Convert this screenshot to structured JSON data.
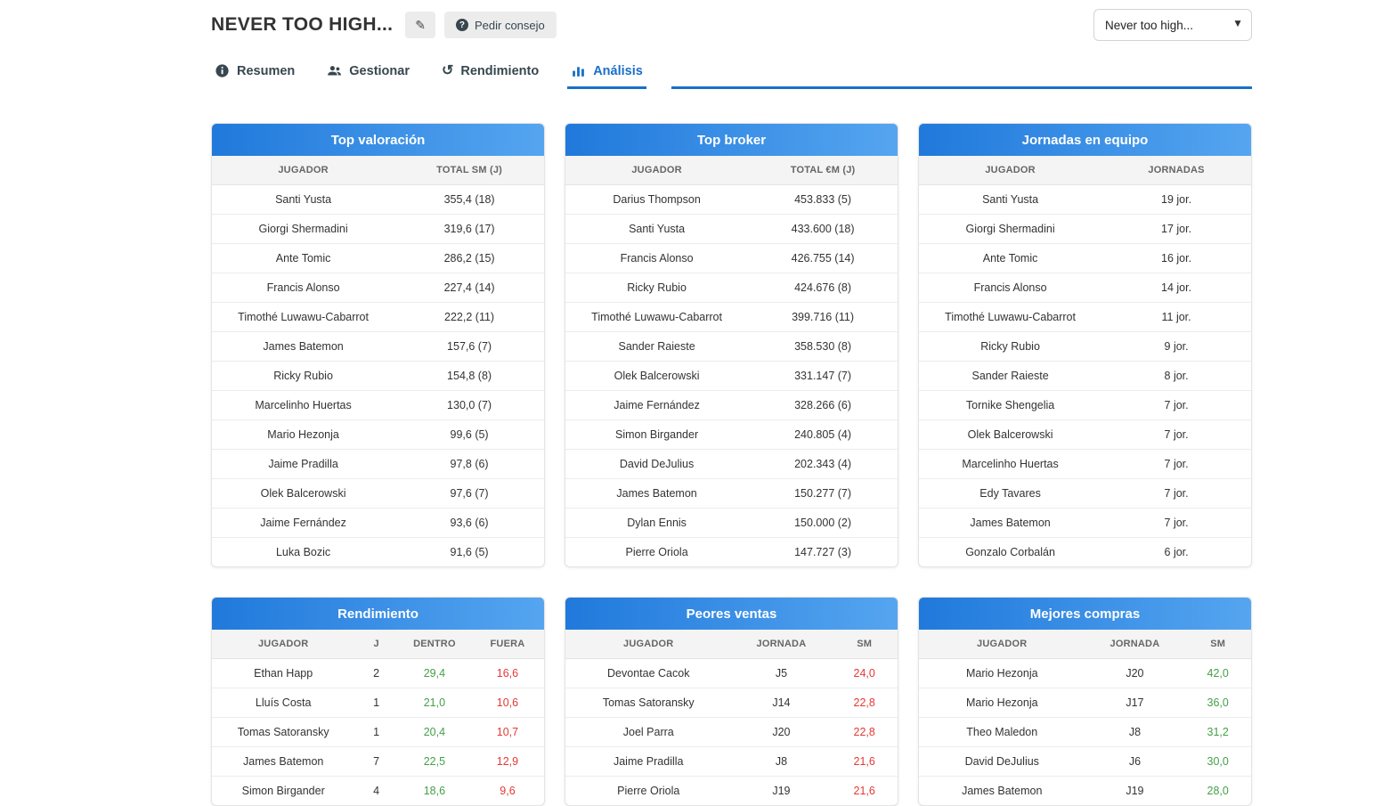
{
  "header": {
    "title": "NEVER TOO HIGH...",
    "edit_icon": "pencil-icon",
    "advice_button": "Pedir consejo",
    "league_select": "Never too high..."
  },
  "colors": {
    "accent_blue": "#1a6fc9",
    "card_gradient_start": "#2079db",
    "card_gradient_end": "#55a5f0",
    "positive": "#43a047",
    "negative": "#e53935"
  },
  "tabs": [
    {
      "label": "Resumen",
      "icon": "summary-icon",
      "active": false
    },
    {
      "label": "Gestionar",
      "icon": "users-icon",
      "active": false
    },
    {
      "label": "Rendimiento",
      "icon": "history-icon",
      "active": false
    },
    {
      "label": "Análisis",
      "icon": "chart-icon",
      "active": true
    }
  ],
  "cards": [
    {
      "title": "Top valoración",
      "columns": [
        "JUGADOR",
        "TOTAL SM (J)"
      ],
      "column_colors": [
        null,
        null
      ],
      "rows": [
        [
          "Santi Yusta",
          "355,4 (18)"
        ],
        [
          "Giorgi Shermadini",
          "319,6 (17)"
        ],
        [
          "Ante Tomic",
          "286,2 (15)"
        ],
        [
          "Francis Alonso",
          "227,4 (14)"
        ],
        [
          "Timothé Luwawu-Cabarrot",
          "222,2 (11)"
        ],
        [
          "James Batemon",
          "157,6 (7)"
        ],
        [
          "Ricky Rubio",
          "154,8 (8)"
        ],
        [
          "Marcelinho Huertas",
          "130,0 (7)"
        ],
        [
          "Mario Hezonja",
          "99,6 (5)"
        ],
        [
          "Jaime Pradilla",
          "97,8 (6)"
        ],
        [
          "Olek Balcerowski",
          "97,6 (7)"
        ],
        [
          "Jaime Fernández",
          "93,6 (6)"
        ],
        [
          "Luka Bozic",
          "91,6 (5)"
        ]
      ]
    },
    {
      "title": "Top broker",
      "columns": [
        "JUGADOR",
        "TOTAL €M (J)"
      ],
      "column_colors": [
        null,
        null
      ],
      "rows": [
        [
          "Darius Thompson",
          "453.833 (5)"
        ],
        [
          "Santi Yusta",
          "433.600 (18)"
        ],
        [
          "Francis Alonso",
          "426.755 (14)"
        ],
        [
          "Ricky Rubio",
          "424.676 (8)"
        ],
        [
          "Timothé Luwawu-Cabarrot",
          "399.716 (11)"
        ],
        [
          "Sander Raieste",
          "358.530 (8)"
        ],
        [
          "Olek Balcerowski",
          "331.147 (7)"
        ],
        [
          "Jaime Fernández",
          "328.266 (6)"
        ],
        [
          "Simon Birgander",
          "240.805 (4)"
        ],
        [
          "David DeJulius",
          "202.343 (4)"
        ],
        [
          "James Batemon",
          "150.277 (7)"
        ],
        [
          "Dylan Ennis",
          "150.000 (2)"
        ],
        [
          "Pierre Oriola",
          "147.727 (3)"
        ]
      ]
    },
    {
      "title": "Jornadas en equipo",
      "columns": [
        "JUGADOR",
        "JORNADAS"
      ],
      "column_colors": [
        null,
        null
      ],
      "rows": [
        [
          "Santi Yusta",
          "19 jor."
        ],
        [
          "Giorgi Shermadini",
          "17 jor."
        ],
        [
          "Ante Tomic",
          "16 jor."
        ],
        [
          "Francis Alonso",
          "14 jor."
        ],
        [
          "Timothé Luwawu-Cabarrot",
          "11 jor."
        ],
        [
          "Ricky Rubio",
          "9 jor."
        ],
        [
          "Sander Raieste",
          "8 jor."
        ],
        [
          "Tornike Shengelia",
          "7 jor."
        ],
        [
          "Olek Balcerowski",
          "7 jor."
        ],
        [
          "Marcelinho Huertas",
          "7 jor."
        ],
        [
          "Edy Tavares",
          "7 jor."
        ],
        [
          "James Batemon",
          "7 jor."
        ],
        [
          "Gonzalo Corbalán",
          "6 jor."
        ]
      ]
    },
    {
      "title": "Rendimiento",
      "columns": [
        "JUGADOR",
        "J",
        "DENTRO",
        "FUERA"
      ],
      "column_colors": [
        null,
        null,
        "green",
        "red"
      ],
      "rows": [
        [
          "Ethan Happ",
          "2",
          "29,4",
          "16,6"
        ],
        [
          "Lluís Costa",
          "1",
          "21,0",
          "10,6"
        ],
        [
          "Tomas Satoransky",
          "1",
          "20,4",
          "10,7"
        ],
        [
          "James Batemon",
          "7",
          "22,5",
          "12,9"
        ],
        [
          "Simon Birgander",
          "4",
          "18,6",
          "9,6"
        ]
      ]
    },
    {
      "title": "Peores ventas",
      "columns": [
        "JUGADOR",
        "JORNADA",
        "SM"
      ],
      "column_colors": [
        null,
        null,
        "red"
      ],
      "rows": [
        [
          "Devontae Cacok",
          "J5",
          "24,0"
        ],
        [
          "Tomas Satoransky",
          "J14",
          "22,8"
        ],
        [
          "Joel Parra",
          "J20",
          "22,8"
        ],
        [
          "Jaime Pradilla",
          "J8",
          "21,6"
        ],
        [
          "Pierre Oriola",
          "J19",
          "21,6"
        ]
      ]
    },
    {
      "title": "Mejores compras",
      "columns": [
        "JUGADOR",
        "JORNADA",
        "SM"
      ],
      "column_colors": [
        null,
        null,
        "green"
      ],
      "rows": [
        [
          "Mario Hezonja",
          "J20",
          "42,0"
        ],
        [
          "Mario Hezonja",
          "J17",
          "36,0"
        ],
        [
          "Theo Maledon",
          "J8",
          "31,2"
        ],
        [
          "David DeJulius",
          "J6",
          "30,0"
        ],
        [
          "James Batemon",
          "J19",
          "28,0"
        ]
      ]
    }
  ]
}
